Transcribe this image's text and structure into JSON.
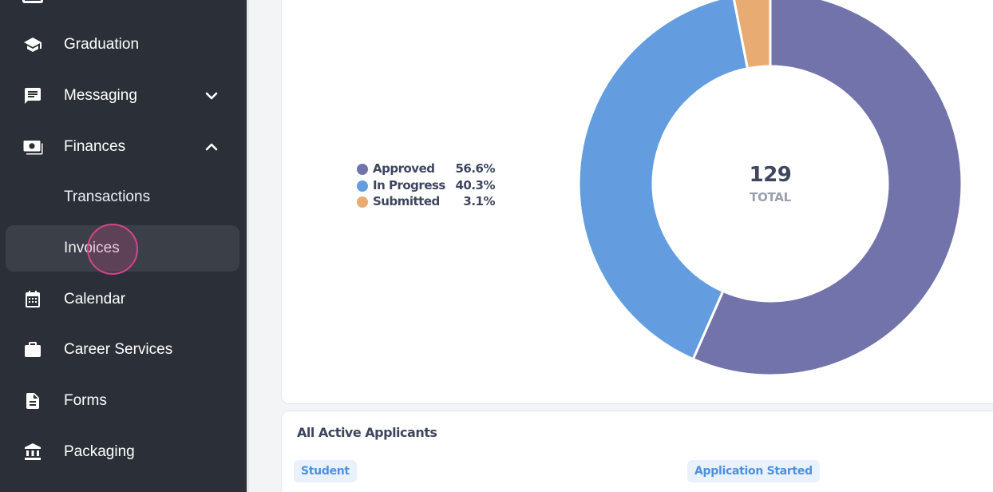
{
  "sidebar": {
    "items": [
      {
        "label": "Graduation",
        "icon": "graduation-cap-icon"
      },
      {
        "label": "Messaging",
        "icon": "chat-bubble-icon",
        "expanded": false
      },
      {
        "label": "Finances",
        "icon": "money-icon",
        "expanded": true
      },
      {
        "label": "Transactions"
      },
      {
        "label": "Invoices",
        "active": true
      },
      {
        "label": "Calendar",
        "icon": "calendar-icon"
      },
      {
        "label": "Career Services",
        "icon": "briefcase-icon"
      },
      {
        "label": "Forms",
        "icon": "document-icon"
      },
      {
        "label": "Packaging",
        "icon": "bank-icon"
      }
    ]
  },
  "chart_data": {
    "type": "pie",
    "categories": [
      "Approved",
      "In Progress",
      "Submitted"
    ],
    "values": [
      56.6,
      40.3,
      3.1
    ],
    "value_labels": [
      "56.6%",
      "40.3%",
      "3.1%"
    ],
    "colors": [
      "#7373ab",
      "#639ddf",
      "#e8ab72"
    ],
    "center_value": "129",
    "center_label": "TOTAL",
    "legend": "left"
  },
  "table": {
    "title": "All Active Applicants",
    "columns": [
      "Student",
      "Application Started"
    ]
  }
}
